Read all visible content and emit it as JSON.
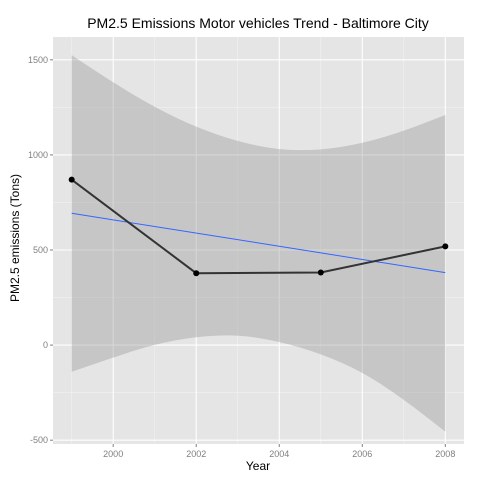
{
  "chart_data": {
    "type": "line",
    "title": "PM2.5 Emissions Motor vehicles Trend - Baltimore City",
    "xlabel": "Year",
    "ylabel": "PM2.5 emissions (Tons)",
    "xlim": [
      1998.55,
      2008.45
    ],
    "ylim": [
      -520,
      1620
    ],
    "x_ticks": [
      2000,
      2002,
      2004,
      2006,
      2008
    ],
    "y_ticks": [
      -500,
      0,
      500,
      1000,
      1500
    ],
    "x_tick_labels": [
      "2000",
      "2002",
      "2004",
      "2006",
      "2008"
    ],
    "y_tick_labels": [
      "-500",
      "0",
      "500",
      "1000",
      "1500"
    ],
    "grid": true,
    "legend": "none",
    "series": [
      {
        "type": "line+points",
        "x": [
          1999,
          2002,
          2005,
          2008
        ],
        "y": [
          870,
          378,
          382,
          519
        ]
      }
    ],
    "regression": {
      "method": "linear",
      "x_range": [
        1999,
        2008
      ],
      "fit": [
        [
          1999,
          693
        ],
        [
          2008,
          381
        ]
      ],
      "ci_upper": [
        [
          1999,
          1525
        ],
        [
          2000,
          1380
        ],
        [
          2001,
          1250
        ],
        [
          2002,
          1145
        ],
        [
          2003,
          1070
        ],
        [
          2004,
          1025
        ],
        [
          2005,
          1025
        ],
        [
          2006,
          1060
        ],
        [
          2007,
          1125
        ],
        [
          2008,
          1210
        ]
      ],
      "ci_lower": [
        [
          1999,
          -140
        ],
        [
          2000,
          -65
        ],
        [
          2001,
          5
        ],
        [
          2002,
          45
        ],
        [
          2003,
          55
        ],
        [
          2004,
          20
        ],
        [
          2005,
          -45
        ],
        [
          2006,
          -140
        ],
        [
          2007,
          -285
        ],
        [
          2008,
          -455
        ]
      ]
    },
    "colors": {
      "panel": "#e5e5e5",
      "grid_major": "#ffffff",
      "grid_minor": "#f2f2f2",
      "ribbon": "#999999",
      "fit_line": "#3366ff",
      "data_line": "#333333",
      "points": "#000000"
    }
  }
}
